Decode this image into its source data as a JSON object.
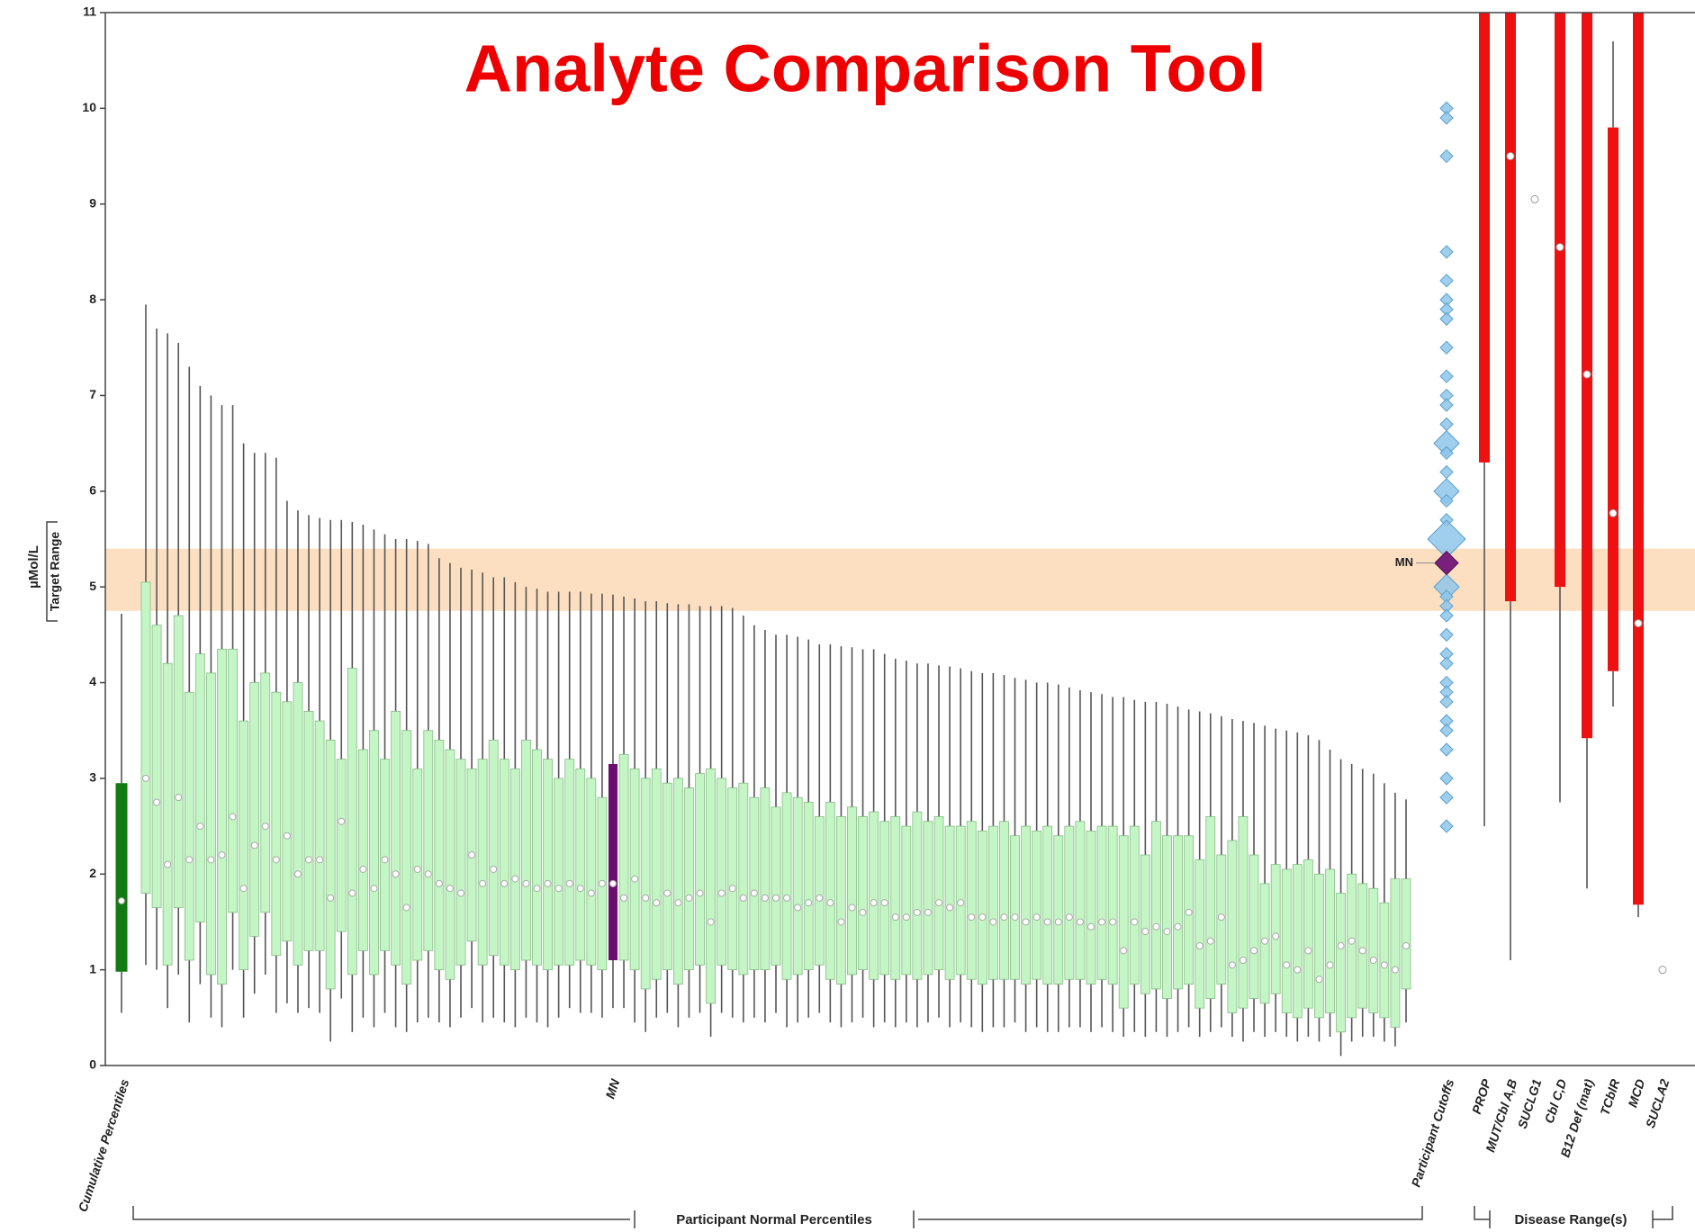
{
  "chart_data": {
    "type": "box",
    "title": "Analyte Comparison Tool",
    "y_label": "µMol/L",
    "target_label": "Target Range",
    "target_range": [
      4.75,
      5.4
    ],
    "target_color": "#fcd9b5",
    "ylim": [
      0,
      11
    ],
    "yticks": [
      0,
      1,
      2,
      3,
      4,
      5,
      6,
      7,
      8,
      9,
      10,
      11
    ],
    "cumulative": {
      "label": "Cumulative Percentiles",
      "color": "#127a12",
      "low": 0.55,
      "q1": 0.98,
      "median": 1.72,
      "q3": 2.95,
      "high": 4.72
    },
    "participants": {
      "group_label": "Participant Normal Percentiles",
      "color": "#c4f5c4",
      "highlight": 43,
      "highlight_color": "#6a0f6e",
      "labels": [
        null,
        null,
        null,
        null,
        null,
        null,
        null,
        null,
        null,
        null,
        null,
        null,
        null,
        null,
        null,
        null,
        null,
        null,
        null,
        null,
        null,
        null,
        null,
        null,
        null,
        null,
        null,
        null,
        null,
        null,
        null,
        null,
        null,
        null,
        null,
        null,
        null,
        null,
        null,
        null,
        null,
        null,
        null,
        "MN",
        null,
        null,
        null,
        null,
        null,
        null,
        null,
        null,
        null,
        null,
        null,
        null,
        null,
        null,
        null,
        null,
        null,
        null,
        null,
        null,
        null,
        null,
        null,
        null,
        null,
        null,
        null,
        null,
        null,
        null,
        null,
        null,
        null,
        null,
        null,
        null,
        null,
        null,
        null,
        null,
        null,
        null,
        null,
        null,
        null,
        null,
        null,
        null,
        null,
        null,
        null,
        null,
        null,
        null,
        null,
        null,
        null,
        null,
        null,
        null,
        null,
        null,
        null,
        null,
        null,
        null,
        null,
        null,
        null,
        null,
        null,
        null,
        null
      ],
      "high": [
        7.95,
        7.7,
        7.65,
        7.55,
        7.3,
        7.1,
        7.0,
        6.9,
        6.9,
        6.5,
        6.4,
        6.4,
        6.35,
        5.9,
        5.8,
        5.75,
        5.72,
        5.7,
        5.7,
        5.68,
        5.65,
        5.6,
        5.55,
        5.5,
        5.5,
        5.48,
        5.45,
        5.3,
        5.25,
        5.2,
        5.18,
        5.15,
        5.1,
        5.1,
        5.05,
        5.0,
        4.98,
        4.95,
        4.95,
        4.95,
        4.95,
        4.93,
        4.93,
        4.92,
        4.9,
        4.88,
        4.85,
        4.85,
        4.83,
        4.82,
        4.82,
        4.8,
        4.8,
        4.8,
        4.78,
        4.7,
        4.6,
        4.55,
        4.5,
        4.5,
        4.48,
        4.45,
        4.4,
        4.4,
        4.38,
        4.37,
        4.35,
        4.35,
        4.3,
        4.25,
        4.23,
        4.2,
        4.2,
        4.18,
        4.17,
        4.15,
        4.12,
        4.1,
        4.1,
        4.08,
        4.05,
        4.03,
        4.0,
        4.0,
        3.98,
        3.95,
        3.92,
        3.9,
        3.88,
        3.85,
        3.85,
        3.82,
        3.8,
        3.8,
        3.78,
        3.75,
        3.72,
        3.7,
        3.68,
        3.65,
        3.62,
        3.6,
        3.58,
        3.55,
        3.52,
        3.5,
        3.48,
        3.45,
        3.4,
        3.3,
        3.2,
        3.15,
        3.1,
        3.05,
        2.95,
        2.85,
        2.78
      ],
      "q3": [
        5.05,
        4.6,
        4.2,
        4.7,
        3.9,
        4.3,
        4.1,
        4.35,
        4.35,
        3.6,
        4.0,
        4.1,
        3.9,
        3.8,
        4.0,
        3.7,
        3.6,
        3.4,
        3.2,
        4.15,
        3.3,
        3.5,
        3.2,
        3.7,
        3.5,
        3.1,
        3.5,
        3.4,
        3.3,
        3.2,
        3.1,
        3.2,
        3.4,
        3.2,
        3.1,
        3.4,
        3.3,
        3.2,
        3.0,
        3.2,
        3.1,
        3.0,
        2.8,
        3.15,
        3.25,
        3.1,
        3.0,
        3.1,
        2.95,
        3.0,
        2.9,
        3.05,
        3.1,
        3.0,
        2.9,
        2.95,
        2.8,
        2.9,
        2.7,
        2.85,
        2.8,
        2.75,
        2.6,
        2.75,
        2.6,
        2.7,
        2.6,
        2.65,
        2.55,
        2.6,
        2.5,
        2.65,
        2.55,
        2.6,
        2.5,
        2.5,
        2.55,
        2.45,
        2.5,
        2.55,
        2.4,
        2.5,
        2.45,
        2.5,
        2.4,
        2.5,
        2.55,
        2.45,
        2.5,
        2.5,
        2.4,
        2.5,
        2.2,
        2.55,
        2.4,
        2.4,
        2.4,
        2.15,
        2.6,
        2.2,
        2.35,
        2.6,
        2.2,
        1.9,
        2.1,
        2.05,
        2.1,
        2.15,
        2.0,
        2.05,
        1.8,
        2.0,
        1.9,
        1.85,
        1.7,
        1.95,
        1.95
      ],
      "median": [
        3.0,
        2.75,
        2.1,
        2.8,
        2.15,
        2.5,
        2.15,
        2.2,
        2.6,
        1.85,
        2.3,
        2.5,
        2.15,
        2.4,
        2.0,
        2.15,
        2.15,
        1.75,
        2.55,
        1.8,
        2.05,
        1.85,
        2.15,
        2.0,
        1.65,
        2.05,
        2.0,
        1.9,
        1.85,
        1.8,
        2.2,
        1.9,
        2.05,
        1.9,
        1.95,
        1.9,
        1.85,
        1.9,
        1.85,
        1.9,
        1.85,
        1.8,
        1.9,
        1.9,
        1.75,
        1.95,
        1.75,
        1.7,
        1.8,
        1.7,
        1.75,
        1.8,
        1.5,
        1.8,
        1.85,
        1.75,
        1.8,
        1.75,
        1.75,
        1.75,
        1.65,
        1.7,
        1.75,
        1.7,
        1.5,
        1.65,
        1.6,
        1.7,
        1.7,
        1.55,
        1.55,
        1.6,
        1.6,
        1.7,
        1.65,
        1.7,
        1.55,
        1.55,
        1.5,
        1.55,
        1.55,
        1.5,
        1.55,
        1.5,
        1.5,
        1.55,
        1.5,
        1.45,
        1.5,
        1.5,
        1.2,
        1.5,
        1.4,
        1.45,
        1.4,
        1.45,
        1.6,
        1.25,
        1.3,
        1.55,
        1.05,
        1.1,
        1.2,
        1.3,
        1.35,
        1.05,
        1.0,
        1.2,
        0.9,
        1.05,
        1.25,
        1.3,
        1.2,
        1.1,
        1.05,
        1.0,
        1.25
      ],
      "q1": [
        1.8,
        1.65,
        1.05,
        1.65,
        1.1,
        1.5,
        0.95,
        0.85,
        1.6,
        1.0,
        1.35,
        1.6,
        1.15,
        1.3,
        1.05,
        1.2,
        1.2,
        0.8,
        1.4,
        0.95,
        1.2,
        0.95,
        1.2,
        1.05,
        0.85,
        1.1,
        1.2,
        1.0,
        0.9,
        1.05,
        1.3,
        1.05,
        1.15,
        1.05,
        1.0,
        1.1,
        1.05,
        1.0,
        1.05,
        1.05,
        1.1,
        1.05,
        1.0,
        1.1,
        1.1,
        1.0,
        0.8,
        0.9,
        1.0,
        0.85,
        1.0,
        1.05,
        0.65,
        1.05,
        1.0,
        0.95,
        1.0,
        1.0,
        1.05,
        0.9,
        0.95,
        1.0,
        1.05,
        0.9,
        0.85,
        0.95,
        1.0,
        0.9,
        0.95,
        0.9,
        0.95,
        0.9,
        0.95,
        1.0,
        0.9,
        0.95,
        0.9,
        0.85,
        0.9,
        0.9,
        0.9,
        0.85,
        0.9,
        0.85,
        0.85,
        0.9,
        0.9,
        0.85,
        0.9,
        0.85,
        0.6,
        0.85,
        0.75,
        0.8,
        0.7,
        0.8,
        0.85,
        0.6,
        0.7,
        0.85,
        0.55,
        0.6,
        0.7,
        0.65,
        0.75,
        0.55,
        0.5,
        0.6,
        0.5,
        0.55,
        0.35,
        0.5,
        0.6,
        0.55,
        0.5,
        0.4,
        0.8
      ],
      "low": [
        1.05,
        1.0,
        0.6,
        0.95,
        0.45,
        0.85,
        0.5,
        0.4,
        1.0,
        0.5,
        0.75,
        0.95,
        0.55,
        0.65,
        0.55,
        0.6,
        0.55,
        0.25,
        0.7,
        0.35,
        0.5,
        0.4,
        0.55,
        0.4,
        0.35,
        0.45,
        0.5,
        0.45,
        0.4,
        0.5,
        0.6,
        0.45,
        0.5,
        0.45,
        0.4,
        0.5,
        0.45,
        0.4,
        0.5,
        0.6,
        0.55,
        0.55,
        0.5,
        0.6,
        0.6,
        0.45,
        0.35,
        0.5,
        0.55,
        0.4,
        0.5,
        0.55,
        0.3,
        0.55,
        0.5,
        0.45,
        0.5,
        0.45,
        0.55,
        0.4,
        0.45,
        0.5,
        0.55,
        0.45,
        0.4,
        0.45,
        0.5,
        0.4,
        0.45,
        0.4,
        0.45,
        0.4,
        0.45,
        0.5,
        0.4,
        0.45,
        0.4,
        0.35,
        0.4,
        0.4,
        0.45,
        0.35,
        0.4,
        0.35,
        0.35,
        0.4,
        0.4,
        0.35,
        0.4,
        0.35,
        0.3,
        0.35,
        0.3,
        0.35,
        0.3,
        0.35,
        0.4,
        0.3,
        0.35,
        0.4,
        0.3,
        0.25,
        0.35,
        0.3,
        0.35,
        0.3,
        0.25,
        0.3,
        0.25,
        0.3,
        0.1,
        0.25,
        0.3,
        0.3,
        0.25,
        0.2,
        0.45
      ]
    },
    "cutoffs": {
      "label": "Participant Cutoffs",
      "color": "#8fc6ea",
      "values": [
        10.0,
        9.9,
        9.5,
        8.5,
        8.2,
        8.0,
        7.9,
        7.8,
        7.5,
        7.2,
        7.0,
        6.9,
        6.7,
        6.5,
        6.4,
        6.2,
        6.0,
        5.9,
        5.7,
        5.5,
        5.0,
        4.9,
        4.8,
        4.7,
        4.5,
        4.3,
        4.2,
        4.0,
        3.9,
        3.8,
        3.6,
        3.5,
        3.3,
        3.0,
        2.8,
        2.5
      ],
      "sizes": [
        1,
        1,
        1,
        1,
        1,
        1,
        1,
        1,
        1,
        1,
        1,
        1,
        1,
        2,
        1,
        1,
        2,
        1,
        1,
        3,
        2,
        1,
        1,
        1,
        1,
        1,
        1,
        1,
        1,
        1,
        1,
        1,
        1,
        1,
        1,
        1
      ],
      "marker": {
        "label": "MN",
        "value": 5.25,
        "color": "#7b1f7d"
      }
    },
    "diseases": {
      "group_label": "Disease Range(s)",
      "color": "#ee1111",
      "categories": [
        "PROP",
        "MUT/Cbl A,B",
        "SUCLG1",
        "Cbl C,D",
        "B12 Def (mat)",
        "TCblR",
        "MCD",
        "SUCLA2"
      ],
      "low": [
        2.5,
        1.1,
        null,
        2.75,
        1.85,
        3.75,
        1.55,
        null
      ],
      "q1": [
        6.3,
        4.85,
        null,
        5.0,
        3.42,
        4.12,
        1.68,
        null
      ],
      "median": [
        null,
        9.5,
        9.05,
        8.55,
        7.22,
        5.77,
        4.62,
        1.0
      ],
      "q3": [
        null,
        null,
        null,
        null,
        null,
        9.8,
        null,
        null
      ],
      "high": [
        null,
        null,
        null,
        null,
        null,
        10.7,
        null,
        null
      ]
    }
  }
}
